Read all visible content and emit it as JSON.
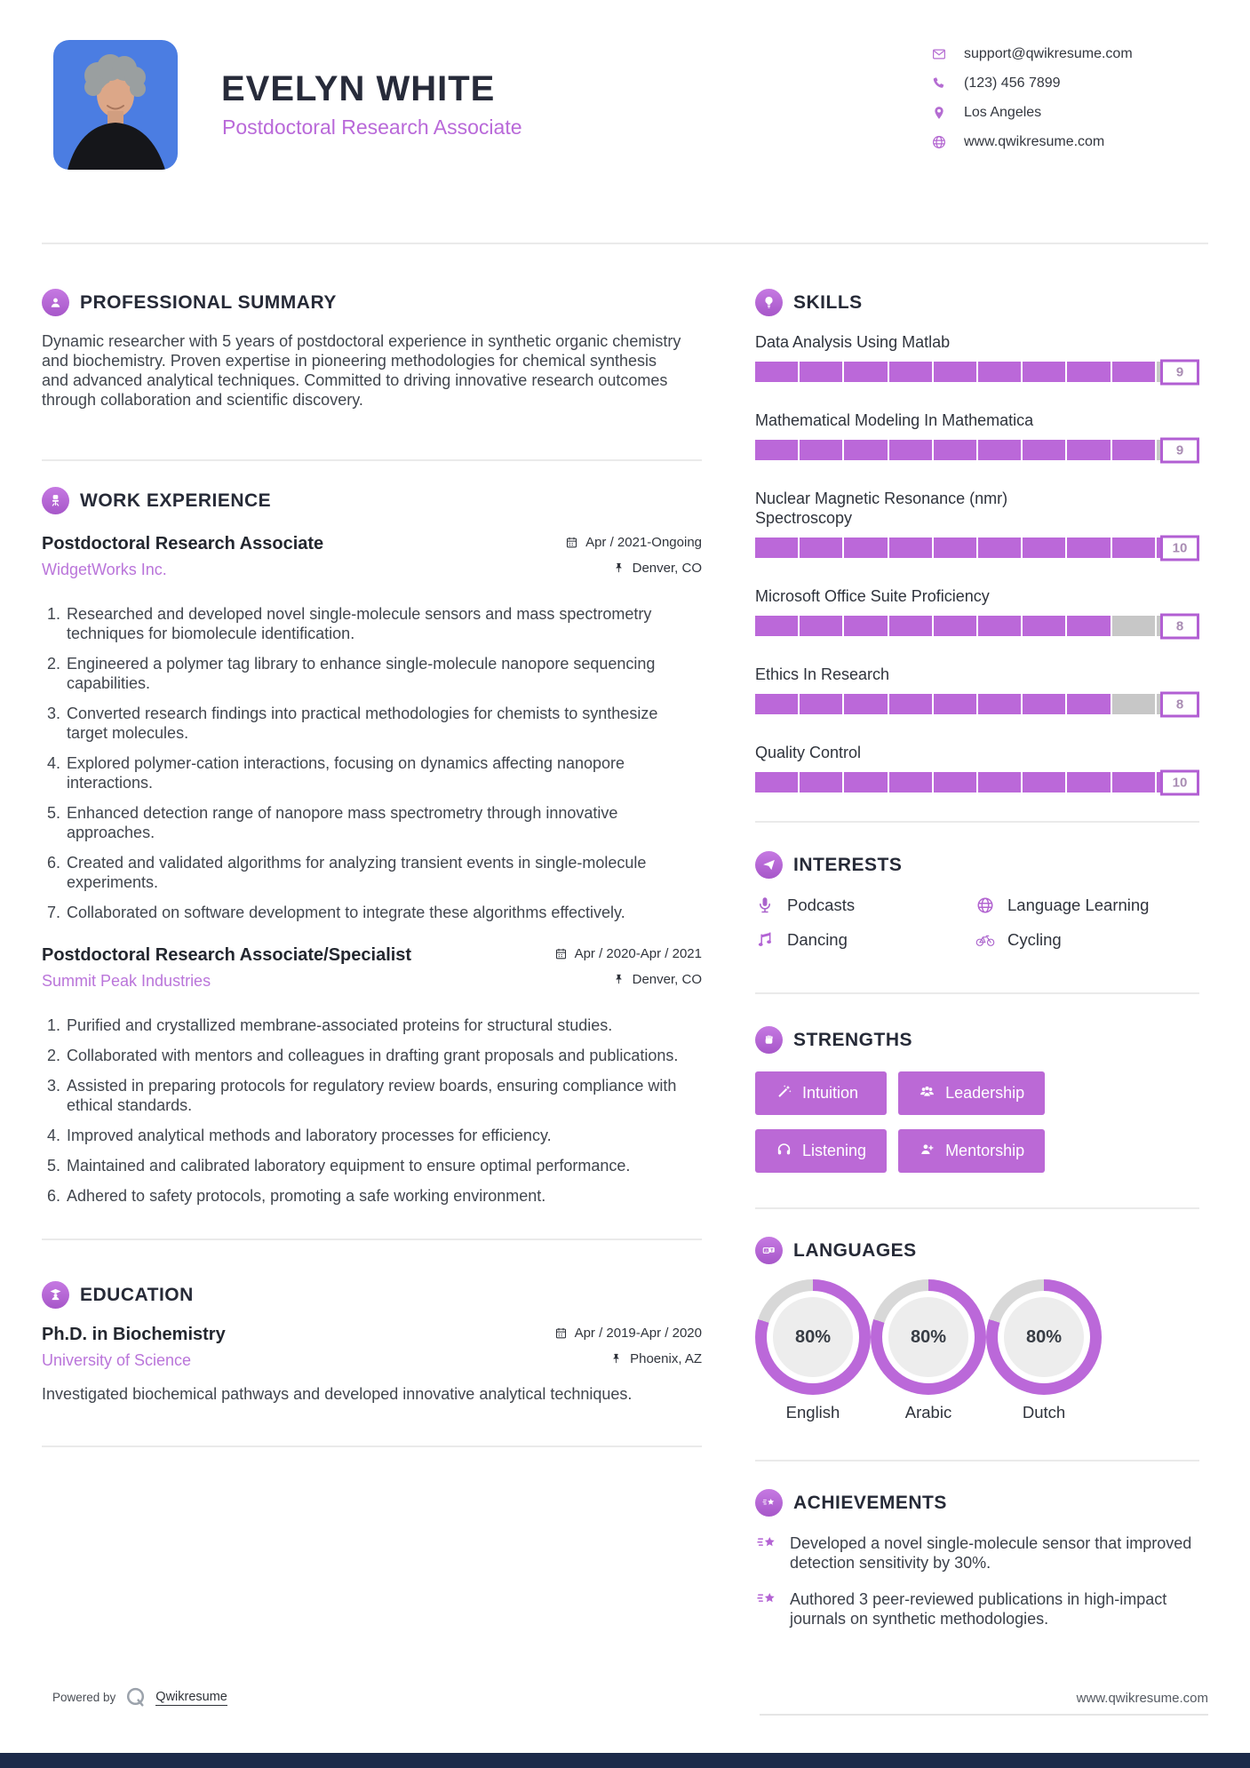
{
  "theme": {
    "accent": "#bb68d9",
    "accent_text": "#ba75da",
    "heading_color": "#262a37",
    "body_color": "#41464e",
    "bar_empty": "#c7c7c7",
    "bottom_bar": "#1c2a4a",
    "photo_background": "#4b7de2"
  },
  "header": {
    "name": "EVELYN WHITE",
    "title": "Postdoctoral Research Associate",
    "contacts": [
      {
        "icon": "envelope-icon",
        "text": "support@qwikresume.com"
      },
      {
        "icon": "phone-icon",
        "text": "(123) 456 7899"
      },
      {
        "icon": "map-pin-icon",
        "text": "Los Angeles"
      },
      {
        "icon": "globe-icon",
        "text": "www.qwikresume.com"
      }
    ]
  },
  "summary": {
    "heading": "PROFESSIONAL SUMMARY",
    "text": "Dynamic researcher with 5 years of postdoctoral experience in synthetic organic chemistry and biochemistry. Proven expertise in pioneering methodologies for chemical synthesis and advanced analytical techniques. Committed to driving innovative research outcomes through collaboration and scientific discovery."
  },
  "work": {
    "heading": "WORK EXPERIENCE",
    "jobs": [
      {
        "title": "Postdoctoral Research Associate",
        "company": "WidgetWorks Inc.",
        "dates": "Apr / 2021-Ongoing",
        "location": "Denver, CO",
        "bullets": [
          "Researched and developed novel single-molecule sensors and mass spectrometry techniques for biomolecule identification.",
          "Engineered a polymer tag library to enhance single-molecule nanopore sequencing capabilities.",
          "Converted research findings into practical methodologies for chemists to synthesize target molecules.",
          "Explored polymer-cation interactions, focusing on dynamics affecting nanopore interactions.",
          "Enhanced detection range of nanopore mass spectrometry through innovative approaches.",
          "Created and validated algorithms for analyzing transient events in single-molecule experiments.",
          "Collaborated on software development to integrate these algorithms effectively."
        ]
      },
      {
        "title": "Postdoctoral Research Associate/Specialist",
        "company": "Summit Peak Industries",
        "dates": "Apr / 2020-Apr / 2021",
        "location": "Denver, CO",
        "bullets": [
          "Purified and crystallized membrane-associated proteins for structural studies.",
          "Collaborated with mentors and colleagues in drafting grant proposals and publications.",
          "Assisted in preparing protocols for regulatory review boards, ensuring compliance with ethical standards.",
          "Improved analytical methods and laboratory processes for efficiency.",
          "Maintained and calibrated laboratory equipment to ensure optimal performance.",
          "Adhered to safety protocols, promoting a safe working environment."
        ]
      }
    ]
  },
  "education": {
    "heading": "EDUCATION",
    "degree": "Ph.D. in Biochemistry",
    "school": "University of Science",
    "dates": "Apr / 2019-Apr / 2020",
    "location": "Phoenix, AZ",
    "description": "Investigated biochemical pathways and developed innovative analytical techniques."
  },
  "skills": {
    "heading": "SKILLS",
    "max": 10,
    "items": [
      {
        "name": "Data Analysis Using Matlab",
        "level": 9
      },
      {
        "name": "Mathematical Modeling In Mathematica",
        "level": 9
      },
      {
        "name": "Nuclear Magnetic Resonance (nmr) Spectroscopy",
        "level": 10
      },
      {
        "name": "Microsoft Office Suite Proficiency",
        "level": 8
      },
      {
        "name": "Ethics In Research",
        "level": 8
      },
      {
        "name": "Quality Control",
        "level": 10
      }
    ]
  },
  "interests": {
    "heading": "INTERESTS",
    "items": [
      {
        "icon": "microphone-icon",
        "label": "Podcasts"
      },
      {
        "icon": "globe-icon",
        "label": "Language Learning"
      },
      {
        "icon": "music-note-icon",
        "label": "Dancing"
      },
      {
        "icon": "bicycle-icon",
        "label": "Cycling"
      }
    ]
  },
  "strengths": {
    "heading": "STRENGTHS",
    "items": [
      {
        "icon": "magic-wand-icon",
        "label": "Intuition"
      },
      {
        "icon": "users-icon",
        "label": "Leadership"
      },
      {
        "icon": "headphones-icon",
        "label": "Listening"
      },
      {
        "icon": "user-plus-icon",
        "label": "Mentorship"
      }
    ]
  },
  "languages": {
    "heading": "LANGUAGES",
    "items": [
      {
        "name": "English",
        "percent": 80
      },
      {
        "name": "Arabic",
        "percent": 80
      },
      {
        "name": "Dutch",
        "percent": 80
      }
    ]
  },
  "achievements": {
    "heading": "ACHIEVEMENTS",
    "items": [
      "Developed a novel single-molecule sensor that improved detection sensitivity by 30%.",
      "Authored 3 peer-reviewed publications in high-impact journals on synthetic methodologies."
    ]
  },
  "footer": {
    "powered_by": "Powered by",
    "brand": "Qwikresume",
    "site": "www.qwikresume.com"
  }
}
